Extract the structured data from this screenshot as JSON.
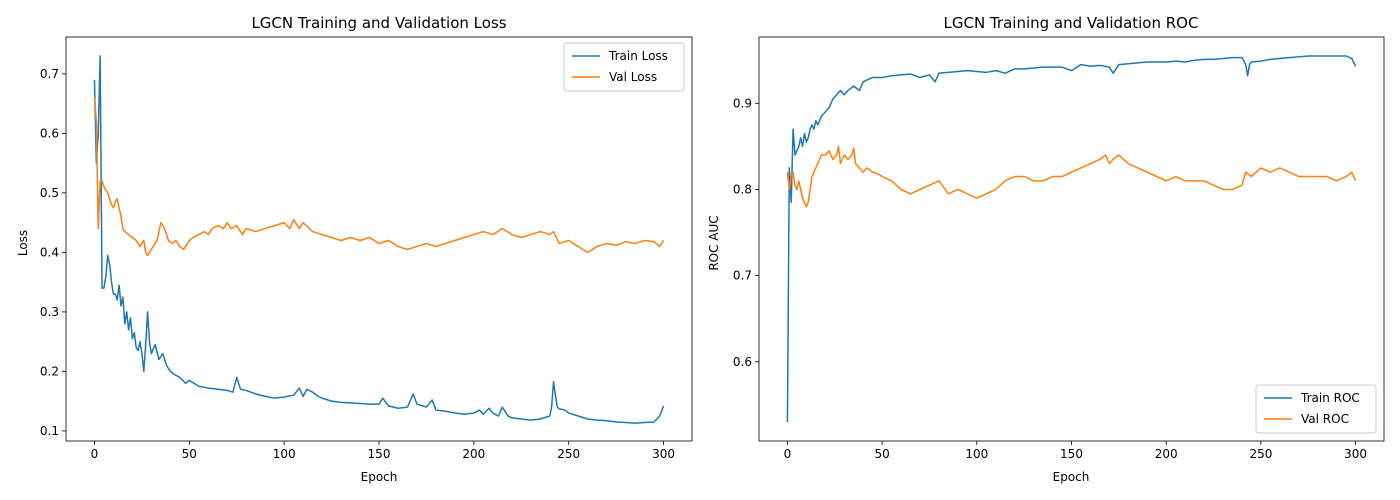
{
  "colors": {
    "train": "#1f77b4",
    "val": "#ff7f0e",
    "axes": "#000000"
  },
  "chart_data": [
    {
      "type": "line",
      "title": "LGCN Training and Validation Loss",
      "xlabel": "Epoch",
      "ylabel": "Loss",
      "xlim": [
        -15,
        315
      ],
      "ylim": [
        0.083,
        0.762
      ],
      "xticks": [
        0,
        50,
        100,
        150,
        200,
        250,
        300
      ],
      "yticks": [
        0.1,
        0.2,
        0.3,
        0.4,
        0.5,
        0.6,
        0.7
      ],
      "ytick_labels": [
        "0.1",
        "0.2",
        "0.3",
        "0.4",
        "0.5",
        "0.6",
        "0.7"
      ],
      "legend_position": "upper right",
      "series": [
        {
          "name": "Train Loss",
          "color": "#1f77b4",
          "x": [
            0,
            1,
            2,
            3,
            4,
            5,
            6,
            7,
            8,
            9,
            10,
            11,
            12,
            13,
            14,
            15,
            16,
            17,
            18,
            19,
            20,
            21,
            22,
            23,
            24,
            25,
            26,
            27,
            28,
            29,
            30,
            32,
            34,
            36,
            38,
            40,
            42,
            45,
            48,
            50,
            55,
            60,
            65,
            70,
            73,
            75,
            77,
            80,
            85,
            90,
            95,
            100,
            105,
            108,
            110,
            112,
            115,
            118,
            120,
            125,
            130,
            135,
            140,
            145,
            150,
            152,
            155,
            160,
            165,
            168,
            170,
            175,
            178,
            180,
            185,
            190,
            195,
            200,
            203,
            205,
            208,
            210,
            213,
            215,
            218,
            220,
            225,
            230,
            235,
            240,
            241,
            242,
            243,
            244,
            245,
            248,
            250,
            255,
            260,
            265,
            270,
            275,
            280,
            285,
            290,
            295,
            298,
            300
          ],
          "y": [
            0.69,
            0.55,
            0.6,
            0.73,
            0.34,
            0.34,
            0.36,
            0.395,
            0.38,
            0.35,
            0.33,
            0.33,
            0.32,
            0.345,
            0.31,
            0.325,
            0.28,
            0.3,
            0.27,
            0.29,
            0.255,
            0.265,
            0.24,
            0.235,
            0.25,
            0.23,
            0.2,
            0.245,
            0.3,
            0.25,
            0.23,
            0.245,
            0.22,
            0.23,
            0.21,
            0.2,
            0.195,
            0.19,
            0.18,
            0.185,
            0.175,
            0.172,
            0.17,
            0.168,
            0.165,
            0.19,
            0.17,
            0.168,
            0.162,
            0.158,
            0.155,
            0.157,
            0.16,
            0.172,
            0.158,
            0.17,
            0.165,
            0.158,
            0.155,
            0.15,
            0.148,
            0.147,
            0.146,
            0.145,
            0.145,
            0.155,
            0.142,
            0.138,
            0.14,
            0.162,
            0.145,
            0.14,
            0.152,
            0.135,
            0.133,
            0.13,
            0.128,
            0.13,
            0.135,
            0.128,
            0.138,
            0.13,
            0.125,
            0.14,
            0.125,
            0.122,
            0.12,
            0.118,
            0.12,
            0.125,
            0.14,
            0.183,
            0.16,
            0.14,
            0.137,
            0.135,
            0.13,
            0.125,
            0.12,
            0.118,
            0.117,
            0.115,
            0.114,
            0.113,
            0.114,
            0.115,
            0.125,
            0.142
          ]
        },
        {
          "name": "Val Loss",
          "color": "#ff7f0e",
          "x": [
            0,
            1,
            2,
            3,
            4,
            5,
            6,
            7,
            8,
            9,
            10,
            11,
            12,
            13,
            14,
            15,
            16,
            18,
            20,
            22,
            24,
            25,
            26,
            27,
            28,
            29,
            30,
            31,
            32,
            33,
            35,
            37,
            39,
            41,
            43,
            45,
            47,
            50,
            52,
            55,
            58,
            60,
            62,
            65,
            68,
            70,
            72,
            75,
            78,
            80,
            85,
            90,
            95,
            100,
            103,
            105,
            108,
            110,
            115,
            120,
            125,
            130,
            135,
            140,
            145,
            150,
            155,
            160,
            165,
            170,
            175,
            180,
            185,
            190,
            195,
            200,
            205,
            210,
            215,
            220,
            225,
            230,
            235,
            240,
            242,
            245,
            250,
            255,
            260,
            265,
            270,
            275,
            280,
            285,
            290,
            295,
            298,
            300
          ],
          "y": [
            0.66,
            0.62,
            0.44,
            0.52,
            0.52,
            0.51,
            0.505,
            0.5,
            0.49,
            0.48,
            0.475,
            0.485,
            0.49,
            0.475,
            0.46,
            0.44,
            0.435,
            0.43,
            0.425,
            0.42,
            0.41,
            0.415,
            0.42,
            0.4,
            0.395,
            0.4,
            0.405,
            0.41,
            0.415,
            0.42,
            0.45,
            0.44,
            0.42,
            0.415,
            0.42,
            0.41,
            0.405,
            0.42,
            0.425,
            0.43,
            0.435,
            0.43,
            0.44,
            0.445,
            0.44,
            0.45,
            0.44,
            0.445,
            0.43,
            0.44,
            0.435,
            0.44,
            0.445,
            0.45,
            0.44,
            0.455,
            0.44,
            0.45,
            0.435,
            0.43,
            0.425,
            0.42,
            0.425,
            0.42,
            0.425,
            0.415,
            0.42,
            0.41,
            0.405,
            0.41,
            0.415,
            0.41,
            0.415,
            0.42,
            0.425,
            0.43,
            0.435,
            0.43,
            0.44,
            0.43,
            0.425,
            0.43,
            0.435,
            0.43,
            0.435,
            0.415,
            0.42,
            0.41,
            0.4,
            0.41,
            0.415,
            0.412,
            0.418,
            0.415,
            0.42,
            0.418,
            0.41,
            0.42
          ]
        }
      ]
    },
    {
      "type": "line",
      "title": "LGCN Training and Validation ROC",
      "xlabel": "Epoch",
      "ylabel": "ROC AUC",
      "xlim": [
        -15,
        315
      ],
      "ylim": [
        0.508,
        0.977
      ],
      "xticks": [
        0,
        50,
        100,
        150,
        200,
        250,
        300
      ],
      "yticks": [
        0.6,
        0.7,
        0.8,
        0.9
      ],
      "ytick_labels": [
        "0.6",
        "0.7",
        "0.8",
        "0.9"
      ],
      "legend_position": "lower right",
      "series": [
        {
          "name": "Train ROC",
          "color": "#1f77b4",
          "x": [
            0,
            1,
            2,
            3,
            4,
            5,
            6,
            7,
            8,
            9,
            10,
            11,
            12,
            13,
            14,
            15,
            16,
            18,
            20,
            22,
            24,
            26,
            28,
            30,
            32,
            35,
            38,
            40,
            45,
            50,
            55,
            60,
            65,
            70,
            75,
            78,
            80,
            85,
            90,
            95,
            100,
            105,
            110,
            115,
            120,
            125,
            130,
            135,
            140,
            145,
            150,
            155,
            160,
            165,
            170,
            172,
            175,
            180,
            185,
            190,
            195,
            200,
            205,
            210,
            215,
            220,
            225,
            230,
            235,
            240,
            242,
            243,
            244,
            245,
            250,
            255,
            260,
            265,
            270,
            275,
            280,
            285,
            290,
            295,
            298,
            300
          ],
          "y": [
            0.53,
            0.825,
            0.785,
            0.87,
            0.84,
            0.845,
            0.85,
            0.86,
            0.85,
            0.865,
            0.855,
            0.86,
            0.87,
            0.875,
            0.87,
            0.88,
            0.875,
            0.885,
            0.89,
            0.895,
            0.905,
            0.91,
            0.915,
            0.91,
            0.915,
            0.92,
            0.915,
            0.925,
            0.93,
            0.93,
            0.932,
            0.933,
            0.934,
            0.93,
            0.933,
            0.925,
            0.935,
            0.936,
            0.937,
            0.938,
            0.937,
            0.936,
            0.938,
            0.935,
            0.94,
            0.94,
            0.941,
            0.942,
            0.942,
            0.942,
            0.938,
            0.945,
            0.943,
            0.944,
            0.942,
            0.935,
            0.945,
            0.946,
            0.947,
            0.948,
            0.948,
            0.948,
            0.949,
            0.948,
            0.95,
            0.951,
            0.951,
            0.952,
            0.953,
            0.953,
            0.945,
            0.932,
            0.945,
            0.948,
            0.949,
            0.951,
            0.952,
            0.953,
            0.954,
            0.955,
            0.955,
            0.955,
            0.955,
            0.955,
            0.952,
            0.943
          ]
        },
        {
          "name": "Val ROC",
          "color": "#ff7f0e",
          "x": [
            0,
            1,
            2,
            3,
            4,
            5,
            6,
            7,
            8,
            9,
            10,
            11,
            12,
            13,
            14,
            16,
            18,
            20,
            22,
            24,
            26,
            27,
            28,
            30,
            32,
            34,
            35,
            36,
            38,
            40,
            42,
            45,
            48,
            50,
            55,
            60,
            65,
            70,
            75,
            80,
            85,
            90,
            95,
            100,
            105,
            110,
            115,
            120,
            125,
            130,
            135,
            140,
            145,
            150,
            155,
            160,
            165,
            168,
            170,
            172,
            175,
            180,
            185,
            190,
            195,
            200,
            205,
            210,
            215,
            220,
            225,
            230,
            235,
            240,
            242,
            245,
            250,
            255,
            260,
            265,
            270,
            275,
            280,
            285,
            290,
            295,
            298,
            300
          ],
          "y": [
            0.82,
            0.8,
            0.815,
            0.82,
            0.805,
            0.8,
            0.81,
            0.8,
            0.79,
            0.785,
            0.78,
            0.785,
            0.8,
            0.815,
            0.82,
            0.83,
            0.84,
            0.84,
            0.845,
            0.835,
            0.84,
            0.85,
            0.83,
            0.84,
            0.835,
            0.84,
            0.848,
            0.83,
            0.825,
            0.82,
            0.825,
            0.82,
            0.818,
            0.815,
            0.81,
            0.8,
            0.795,
            0.8,
            0.805,
            0.81,
            0.795,
            0.8,
            0.795,
            0.79,
            0.795,
            0.8,
            0.81,
            0.815,
            0.815,
            0.81,
            0.81,
            0.815,
            0.815,
            0.82,
            0.825,
            0.83,
            0.835,
            0.84,
            0.83,
            0.835,
            0.84,
            0.83,
            0.825,
            0.82,
            0.815,
            0.81,
            0.815,
            0.81,
            0.81,
            0.81,
            0.805,
            0.8,
            0.8,
            0.805,
            0.82,
            0.815,
            0.825,
            0.82,
            0.825,
            0.82,
            0.815,
            0.815,
            0.815,
            0.815,
            0.81,
            0.815,
            0.82,
            0.81
          ]
        }
      ]
    }
  ]
}
